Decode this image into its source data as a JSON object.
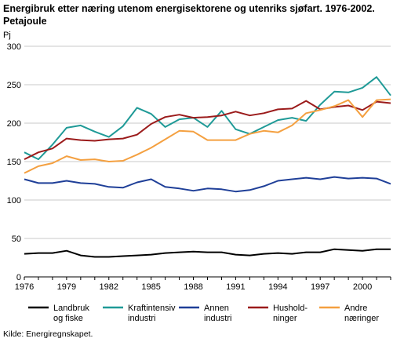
{
  "chart_data": {
    "type": "line",
    "title_lines": [
      "Energibruk etter næring utenom energisektorene og utenriks sjøfart. 1976-2002.",
      "Petajoule"
    ],
    "ylabel": "Pj",
    "ylim": [
      0,
      300
    ],
    "yticks": [
      0,
      50,
      100,
      150,
      200,
      250,
      300
    ],
    "xlim": [
      1976,
      2002
    ],
    "xticks": [
      1976,
      1979,
      1982,
      1985,
      1988,
      1991,
      1994,
      1997,
      2000
    ],
    "grid": "horizontal",
    "legend_position": "bottom",
    "x": [
      1976,
      1977,
      1978,
      1979,
      1980,
      1981,
      1982,
      1983,
      1984,
      1985,
      1986,
      1987,
      1988,
      1989,
      1990,
      1991,
      1992,
      1993,
      1994,
      1995,
      1996,
      1997,
      1998,
      1999,
      2000,
      2001,
      2002
    ],
    "series": [
      {
        "name_lines": [
          "Landbruk",
          "og fiske"
        ],
        "color": "#000000",
        "values": [
          30,
          31,
          31,
          34,
          28,
          26,
          26,
          27,
          28,
          29,
          31,
          32,
          33,
          32,
          32,
          29,
          28,
          30,
          31,
          30,
          32,
          32,
          36,
          35,
          34,
          36,
          36
        ]
      },
      {
        "name_lines": [
          "Kraftintensiv",
          "industri"
        ],
        "color": "#1f9a97",
        "values": [
          162,
          153,
          172,
          194,
          197,
          189,
          182,
          196,
          220,
          212,
          195,
          205,
          207,
          195,
          216,
          192,
          186,
          195,
          204,
          207,
          203,
          224,
          241,
          240,
          246,
          260,
          236
        ]
      },
      {
        "name_lines": [
          "Annen",
          "industri"
        ],
        "color": "#1f3f98",
        "values": [
          127,
          122,
          122,
          125,
          122,
          121,
          117,
          116,
          123,
          127,
          117,
          115,
          112,
          115,
          114,
          111,
          113,
          118,
          125,
          127,
          129,
          127,
          130,
          128,
          129,
          128,
          121
        ]
      },
      {
        "name_lines": [
          "Hushold-",
          "ninger"
        ],
        "color": "#9b1b1b",
        "values": [
          153,
          162,
          167,
          180,
          178,
          177,
          179,
          180,
          185,
          199,
          208,
          211,
          207,
          208,
          210,
          215,
          210,
          213,
          218,
          219,
          229,
          218,
          221,
          223,
          217,
          228,
          226
        ]
      },
      {
        "name_lines": [
          "Andre",
          "næringer"
        ],
        "color": "#f4a040",
        "values": [
          135,
          144,
          148,
          157,
          152,
          153,
          150,
          151,
          159,
          168,
          179,
          190,
          189,
          178,
          178,
          178,
          186,
          190,
          188,
          197,
          213,
          217,
          222,
          230,
          208,
          230,
          231
        ]
      }
    ]
  },
  "source": "Kilde: Energiregnskapet."
}
